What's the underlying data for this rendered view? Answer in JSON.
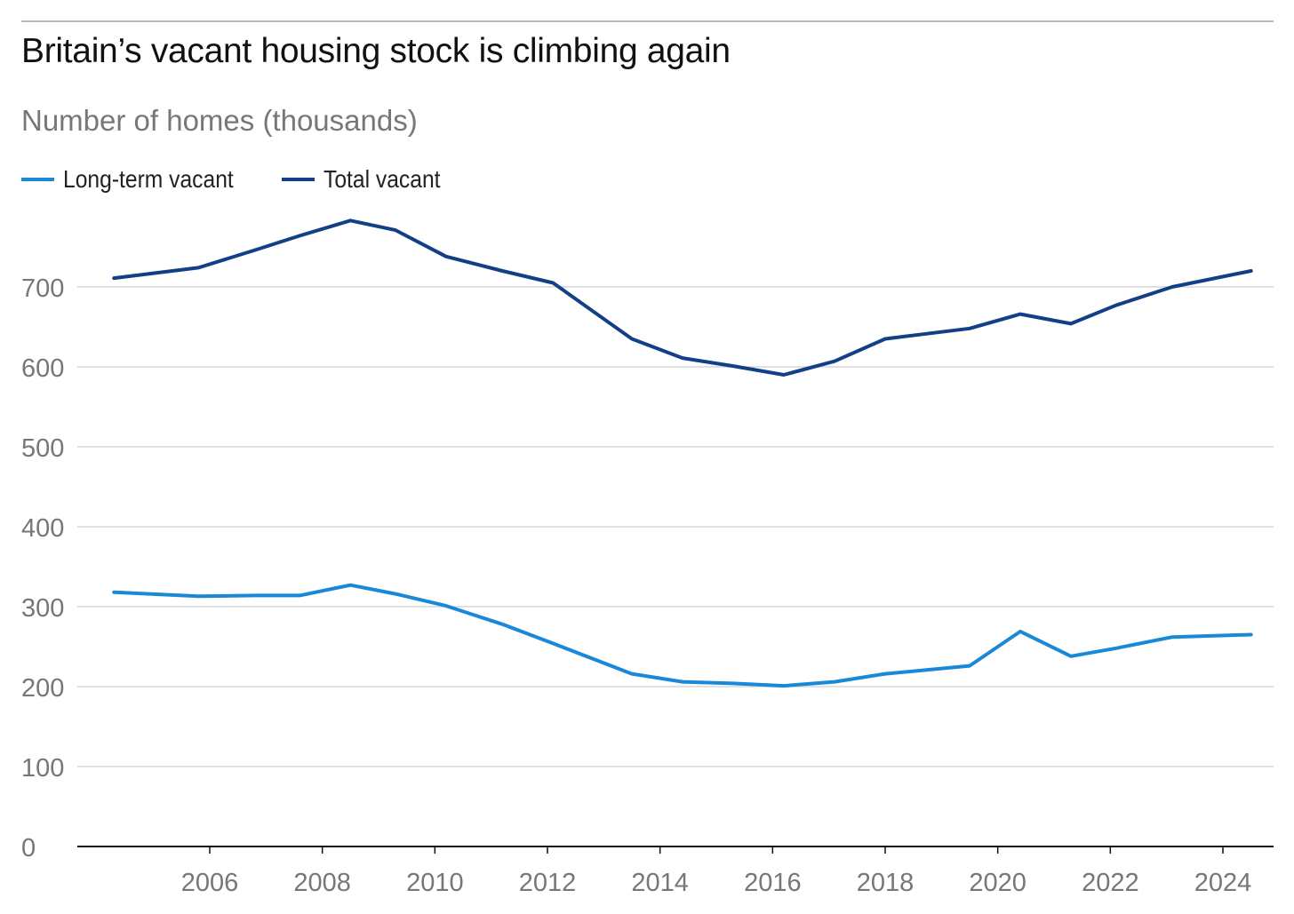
{
  "chart_data": {
    "type": "line",
    "title": "Britain’s vacant housing stock is climbing again",
    "subtitle": "Number of homes (thousands)",
    "xlabel": "",
    "ylabel": "Number of homes (thousands)",
    "xlim": [
      2004,
      2024.6
    ],
    "ylim": [
      0,
      800
    ],
    "yticks": [
      0,
      100,
      200,
      300,
      400,
      500,
      600,
      700
    ],
    "ytick_labels": [
      "0",
      "100",
      "200",
      "300",
      "400",
      "500",
      "600",
      "700"
    ],
    "xticks": [
      2006,
      2008,
      2010,
      2012,
      2014,
      2016,
      2018,
      2020,
      2022,
      2024
    ],
    "xtick_labels": [
      "2006",
      "2008",
      "2010",
      "2012",
      "2014",
      "2016",
      "2018",
      "2020",
      "2022",
      "2024"
    ],
    "grid": true,
    "legend_position": "top-left",
    "series": [
      {
        "name": "Long-term vacant",
        "color": "#1a88d8",
        "x": [
          2004.3,
          2005.8,
          2006.8,
          2007.6,
          2008.5,
          2009.3,
          2010.2,
          2011.2,
          2012.1,
          2013.5,
          2014.4,
          2015.3,
          2016.2,
          2017.1,
          2018.0,
          2019.5,
          2020.4,
          2021.3,
          2022.1,
          2023.1,
          2024.5
        ],
        "values": [
          318,
          313,
          314,
          314,
          327,
          316,
          301,
          278,
          254,
          216,
          206,
          204,
          201,
          206,
          216,
          226,
          269,
          238,
          248,
          262,
          265
        ]
      },
      {
        "name": "Total vacant",
        "color": "#123f86",
        "x": [
          2004.3,
          2005.8,
          2006.8,
          2007.6,
          2008.5,
          2009.3,
          2010.2,
          2011.2,
          2012.1,
          2013.5,
          2014.4,
          2015.3,
          2016.2,
          2017.1,
          2018.0,
          2019.5,
          2020.4,
          2021.3,
          2022.1,
          2023.1,
          2024.5
        ],
        "values": [
          711,
          724,
          746,
          764,
          783,
          771,
          738,
          720,
          705,
          635,
          611,
          601,
          590,
          607,
          635,
          648,
          666,
          654,
          677,
          700,
          720
        ]
      }
    ]
  }
}
